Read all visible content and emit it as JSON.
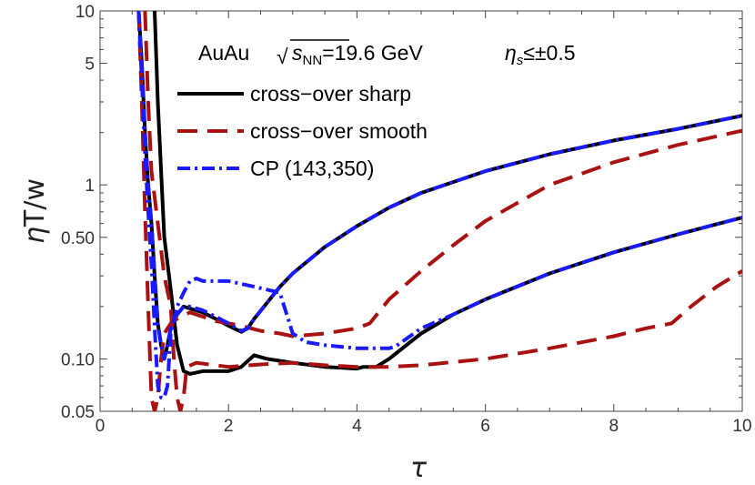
{
  "chart_data": {
    "type": "line",
    "xlabel": "τ",
    "ylabel_parts": [
      "η",
      "T/w"
    ],
    "annotation": {
      "system": "AuAu",
      "sqrt_symbol": "√",
      "energy_symbol": "s",
      "energy_subscript": "NN",
      "energy_value": "=19.6 GeV",
      "rapidity_symbol": "η",
      "rapidity_subscript": "s",
      "rapidity_value": "≤±0.5"
    },
    "x_range": [
      0,
      10
    ],
    "y_range": [
      0.05,
      10
    ],
    "y_scale": "log",
    "grid": false,
    "legend_position": "top-left",
    "x_ticks": [
      "0",
      "2",
      "4",
      "6",
      "8",
      "10"
    ],
    "x_tick_values": [
      0,
      2,
      4,
      6,
      8,
      10
    ],
    "y_ticks": [
      "0.05",
      "0.10",
      "0.50",
      "1",
      "5",
      "10"
    ],
    "y_tick_values": [
      0.05,
      0.1,
      0.5,
      1,
      5,
      10
    ],
    "series": [
      {
        "name": "cross−over sharp",
        "color": "#000000",
        "style": "solid",
        "curves": [
          [
            [
              0.6,
              10
            ],
            [
              0.65,
              5
            ],
            [
              0.7,
              2
            ],
            [
              0.75,
              1
            ],
            [
              0.8,
              0.6
            ],
            [
              0.85,
              0.3
            ],
            [
              0.9,
              0.16
            ],
            [
              0.95,
              0.12
            ],
            [
              1.0,
              0.1
            ],
            [
              1.05,
              0.12
            ],
            [
              1.1,
              0.15
            ],
            [
              1.2,
              0.18
            ],
            [
              1.3,
              0.2
            ],
            [
              1.4,
              0.195
            ],
            [
              1.6,
              0.185
            ],
            [
              1.8,
              0.17
            ],
            [
              2.0,
              0.155
            ],
            [
              2.2,
              0.143
            ],
            [
              2.3,
              0.15
            ],
            [
              2.4,
              0.17
            ],
            [
              2.6,
              0.21
            ],
            [
              2.8,
              0.26
            ],
            [
              3.0,
              0.31
            ],
            [
              3.5,
              0.44
            ],
            [
              4.0,
              0.58
            ],
            [
              4.5,
              0.74
            ],
            [
              5.0,
              0.9
            ],
            [
              6.0,
              1.2
            ],
            [
              7.0,
              1.5
            ],
            [
              8.0,
              1.8
            ],
            [
              9.0,
              2.1
            ],
            [
              10.0,
              2.5
            ]
          ],
          [
            [
              0.85,
              10
            ],
            [
              0.9,
              3
            ],
            [
              0.95,
              1.2
            ],
            [
              1.0,
              0.5
            ],
            [
              1.1,
              0.25
            ],
            [
              1.2,
              0.12
            ],
            [
              1.3,
              0.085
            ],
            [
              1.4,
              0.082
            ],
            [
              1.6,
              0.085
            ],
            [
              1.8,
              0.085
            ],
            [
              2.0,
              0.085
            ],
            [
              2.2,
              0.09
            ],
            [
              2.4,
              0.105
            ],
            [
              2.6,
              0.1
            ],
            [
              3.0,
              0.095
            ],
            [
              3.5,
              0.09
            ],
            [
              4.0,
              0.088
            ],
            [
              4.1,
              0.09
            ],
            [
              4.3,
              0.09
            ],
            [
              4.5,
              0.1
            ],
            [
              5.0,
              0.14
            ],
            [
              5.5,
              0.18
            ],
            [
              6.0,
              0.22
            ],
            [
              7.0,
              0.31
            ],
            [
              8.0,
              0.41
            ],
            [
              9.0,
              0.52
            ],
            [
              10.0,
              0.65
            ]
          ]
        ]
      },
      {
        "name": "cross−over smooth",
        "color": "#aa1111",
        "style": "dashed",
        "curves": [
          [
            [
              0.6,
              10
            ],
            [
              0.65,
              3
            ],
            [
              0.7,
              0.7
            ],
            [
              0.75,
              0.2
            ],
            [
              0.8,
              0.06
            ],
            [
              0.85,
              0.05
            ],
            [
              0.9,
              0.06
            ],
            [
              0.95,
              0.1
            ],
            [
              1.0,
              0.14
            ],
            [
              1.1,
              0.16
            ],
            [
              1.2,
              0.17
            ],
            [
              1.4,
              0.185
            ],
            [
              1.6,
              0.175
            ],
            [
              1.8,
              0.165
            ],
            [
              2.0,
              0.16
            ],
            [
              2.2,
              0.155
            ],
            [
              2.5,
              0.145
            ],
            [
              2.8,
              0.14
            ],
            [
              3.0,
              0.135
            ],
            [
              3.5,
              0.14
            ],
            [
              4.0,
              0.15
            ],
            [
              4.2,
              0.16
            ],
            [
              4.5,
              0.22
            ],
            [
              5.0,
              0.32
            ],
            [
              5.5,
              0.45
            ],
            [
              6.0,
              0.62
            ],
            [
              7.0,
              1.0
            ],
            [
              8.0,
              1.35
            ],
            [
              9.0,
              1.7
            ],
            [
              10.0,
              2.05
            ]
          ],
          [
            [
              0.7,
              10
            ],
            [
              0.75,
              3
            ],
            [
              0.8,
              1.2
            ],
            [
              0.9,
              0.6
            ],
            [
              1.0,
              0.3
            ],
            [
              1.1,
              0.2
            ],
            [
              1.15,
              0.1
            ],
            [
              1.2,
              0.06
            ],
            [
              1.25,
              0.05
            ],
            [
              1.3,
              0.06
            ],
            [
              1.35,
              0.09
            ],
            [
              1.5,
              0.095
            ],
            [
              1.8,
              0.092
            ],
            [
              2.0,
              0.09
            ],
            [
              2.5,
              0.093
            ],
            [
              3.0,
              0.095
            ],
            [
              3.5,
              0.092
            ],
            [
              4.0,
              0.09
            ],
            [
              4.5,
              0.09
            ],
            [
              5.0,
              0.092
            ],
            [
              6.0,
              0.1
            ],
            [
              7.0,
              0.115
            ],
            [
              8.0,
              0.135
            ],
            [
              8.5,
              0.15
            ],
            [
              8.9,
              0.16
            ],
            [
              9.2,
              0.2
            ],
            [
              9.6,
              0.26
            ],
            [
              10.0,
              0.32
            ]
          ]
        ]
      },
      {
        "name": "CP (143,350)",
        "color": "#1a1aff",
        "style": "dashdot",
        "curves": [
          [
            [
              0.6,
              10
            ],
            [
              0.65,
              5
            ],
            [
              0.7,
              2
            ],
            [
              0.75,
              1
            ],
            [
              0.8,
              0.6
            ],
            [
              0.85,
              0.3
            ],
            [
              0.9,
              0.16
            ],
            [
              0.95,
              0.12
            ],
            [
              1.0,
              0.1
            ],
            [
              1.05,
              0.12
            ],
            [
              1.1,
              0.15
            ],
            [
              1.2,
              0.18
            ],
            [
              1.3,
              0.2
            ],
            [
              1.4,
              0.2
            ],
            [
              1.6,
              0.19
            ],
            [
              1.8,
              0.175
            ],
            [
              2.0,
              0.16
            ],
            [
              2.2,
              0.145
            ],
            [
              2.3,
              0.15
            ],
            [
              2.4,
              0.17
            ],
            [
              2.6,
              0.21
            ],
            [
              2.8,
              0.26
            ],
            [
              3.0,
              0.31
            ],
            [
              3.5,
              0.44
            ],
            [
              4.0,
              0.58
            ],
            [
              4.5,
              0.74
            ],
            [
              5.0,
              0.9
            ],
            [
              6.0,
              1.2
            ],
            [
              7.0,
              1.5
            ],
            [
              8.0,
              1.8
            ],
            [
              9.0,
              2.1
            ],
            [
              10.0,
              2.5
            ]
          ],
          [
            [
              0.6,
              10
            ],
            [
              0.65,
              4
            ],
            [
              0.7,
              1.5
            ],
            [
              0.75,
              0.7
            ],
            [
              0.8,
              0.35
            ],
            [
              0.85,
              0.15
            ],
            [
              0.9,
              0.07
            ],
            [
              0.95,
              0.06
            ],
            [
              1.0,
              0.06
            ],
            [
              1.05,
              0.07
            ],
            [
              1.1,
              0.14
            ],
            [
              1.2,
              0.2
            ],
            [
              1.3,
              0.24
            ],
            [
              1.4,
              0.28
            ],
            [
              1.5,
              0.29
            ],
            [
              1.6,
              0.28
            ],
            [
              1.8,
              0.28
            ],
            [
              2.0,
              0.28
            ],
            [
              2.2,
              0.27
            ],
            [
              2.4,
              0.26
            ],
            [
              2.6,
              0.25
            ],
            [
              2.8,
              0.24
            ],
            [
              3.0,
              0.14
            ],
            [
              3.2,
              0.125
            ],
            [
              3.5,
              0.12
            ],
            [
              4.0,
              0.115
            ],
            [
              4.5,
              0.115
            ],
            [
              4.6,
              0.118
            ],
            [
              5.0,
              0.15
            ],
            [
              5.5,
              0.18
            ],
            [
              6.0,
              0.22
            ],
            [
              7.0,
              0.31
            ],
            [
              8.0,
              0.41
            ],
            [
              9.0,
              0.52
            ],
            [
              10.0,
              0.65
            ]
          ]
        ]
      }
    ]
  }
}
